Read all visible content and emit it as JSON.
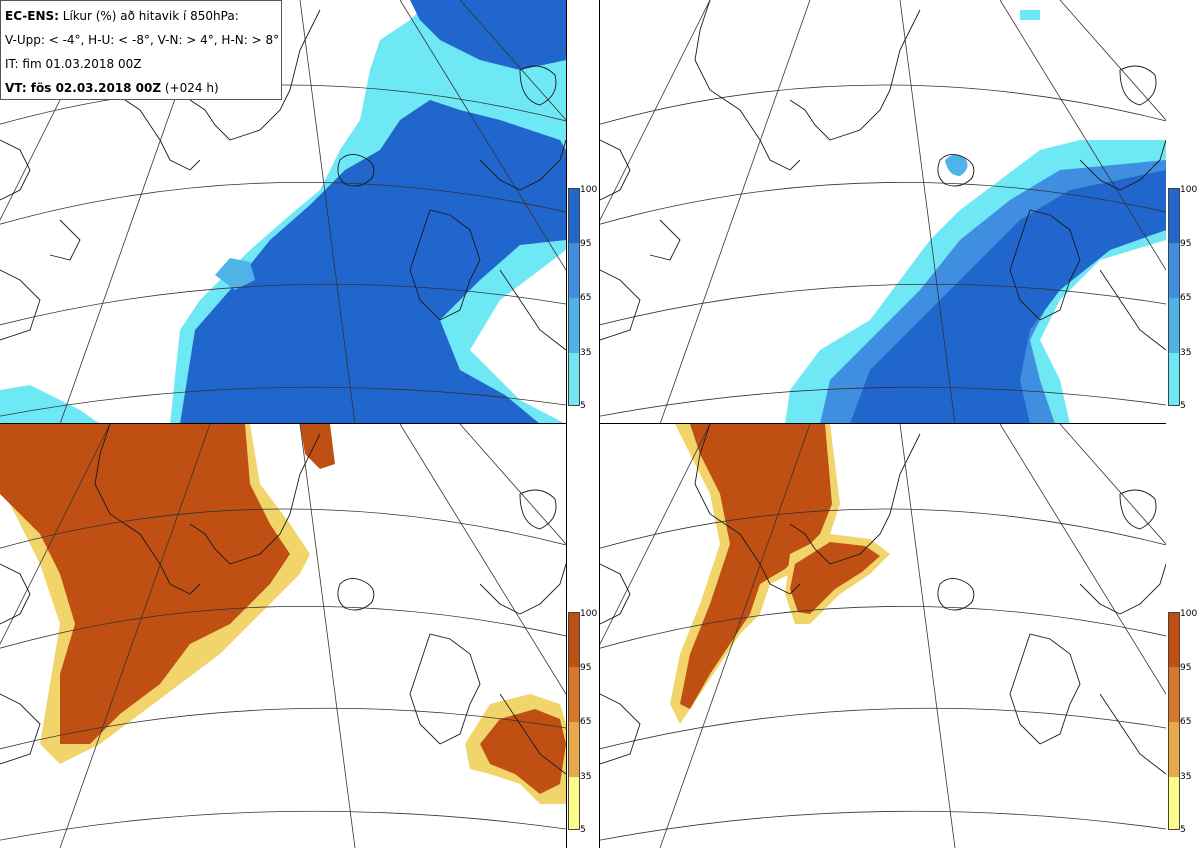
{
  "info": {
    "line1_bold": "EC-ENS:",
    "line1_rest": " Líkur (%) að hitavik í 850hPa:",
    "line2": "V-Upp: < -4°, H-U: < -8°, V-N: > 4°, H-N: > 8°",
    "line3": "IT: fim 01.03.2018 00Z",
    "line4_bold": "VT: fös 02.03.2018 00Z",
    "line4_rest": " (+024 h)"
  },
  "colorbars": {
    "ticks": [
      "100",
      "95",
      "65",
      "35",
      "5"
    ],
    "blue_scale": [
      "#2166cc",
      "#3f8ee0",
      "#4fb3e8",
      "#6fe8f5",
      "#c8fbfc"
    ],
    "orange_scale": [
      "#c04f14",
      "#d6772a",
      "#e8a94a",
      "#f2d56a",
      "#fdfd8c"
    ]
  },
  "colors": {
    "land_outline": "#1a1a1a",
    "grid": "#333333",
    "panel_border": "#000000"
  }
}
